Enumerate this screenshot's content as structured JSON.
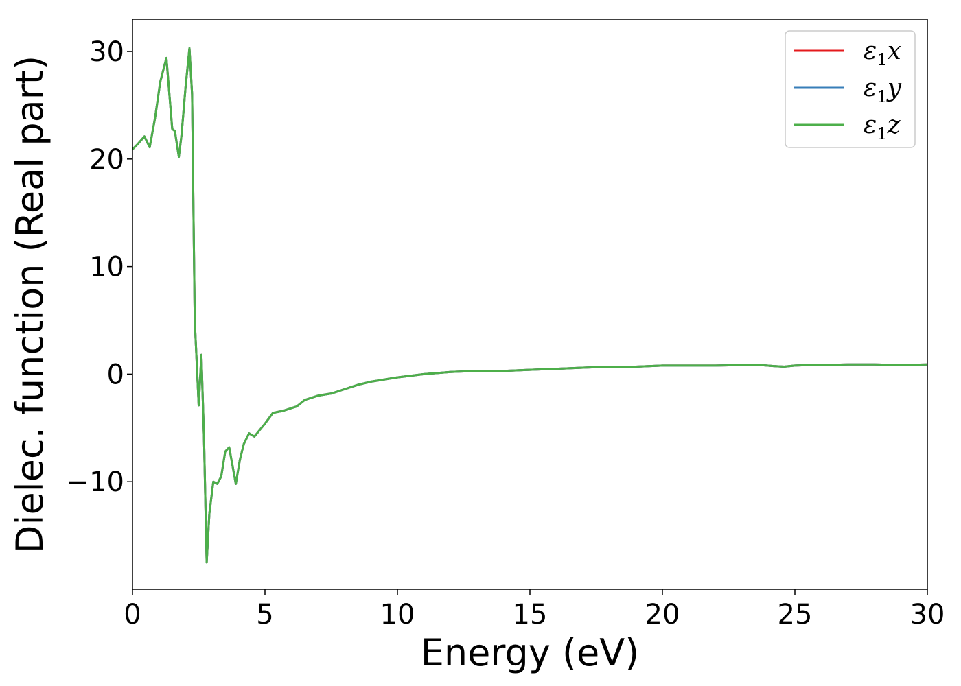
{
  "chart_data": {
    "type": "line",
    "title": "",
    "xlabel": "Energy (eV)",
    "ylabel": "Dielec. function (Real part)",
    "xlim": [
      0,
      30
    ],
    "ylim": [
      -20,
      33
    ],
    "xticks": [
      0,
      5,
      10,
      15,
      20,
      25,
      30
    ],
    "xtick_labels": [
      "0",
      "5",
      "10",
      "15",
      "20",
      "25",
      "30"
    ],
    "yticks": [
      -10,
      0,
      10,
      20,
      30
    ],
    "ytick_labels": [
      "−10",
      "0",
      "10",
      "20",
      "30"
    ],
    "grid": false,
    "legend_position": "top-right",
    "legend": [
      {
        "base": "ε",
        "sub": "1",
        "suffix": "x",
        "color": "#e41a1c"
      },
      {
        "base": "ε",
        "sub": "1",
        "suffix": "y",
        "color": "#377eb8"
      },
      {
        "base": "ε",
        "sub": "1",
        "suffix": "z",
        "color": "#4daf4a"
      }
    ],
    "x": [
      0,
      0.2,
      0.45,
      0.65,
      0.85,
      1.05,
      1.28,
      1.5,
      1.6,
      1.75,
      1.85,
      2.0,
      2.15,
      2.25,
      2.35,
      2.5,
      2.6,
      2.7,
      2.8,
      2.9,
      3.05,
      3.2,
      3.35,
      3.5,
      3.65,
      3.9,
      4.05,
      4.2,
      4.4,
      4.6,
      4.8,
      5.0,
      5.3,
      5.7,
      6.2,
      6.5,
      7.0,
      7.5,
      8.0,
      8.5,
      9.0,
      9.5,
      10.0,
      11.0,
      12.0,
      13.0,
      14.0,
      15.0,
      16.0,
      17.0,
      18.0,
      19.0,
      20.0,
      21.0,
      22.0,
      23.0,
      23.7,
      24.2,
      24.6,
      25.0,
      25.5,
      26.0,
      27.0,
      28.0,
      29.0,
      30.0
    ],
    "series": [
      {
        "name": "ε1x",
        "color": "#e41a1c",
        "values": [
          20.9,
          21.4,
          22.1,
          21.1,
          23.8,
          27.2,
          29.4,
          22.8,
          22.6,
          20.2,
          22.2,
          26.6,
          30.3,
          26.0,
          5.0,
          -2.9,
          1.8,
          -6.0,
          -17.5,
          -13.0,
          -10.0,
          -10.2,
          -9.5,
          -7.2,
          -6.8,
          -10.2,
          -8.0,
          -6.5,
          -5.5,
          -5.8,
          -5.2,
          -4.6,
          -3.6,
          -3.4,
          -3.0,
          -2.4,
          -2.0,
          -1.8,
          -1.4,
          -1.0,
          -0.7,
          -0.5,
          -0.3,
          0.0,
          0.2,
          0.3,
          0.3,
          0.4,
          0.5,
          0.6,
          0.7,
          0.7,
          0.8,
          0.8,
          0.8,
          0.85,
          0.85,
          0.75,
          0.7,
          0.8,
          0.85,
          0.85,
          0.9,
          0.9,
          0.85,
          0.9
        ]
      },
      {
        "name": "ε1y",
        "color": "#377eb8",
        "values": [
          20.9,
          21.4,
          22.1,
          21.1,
          23.8,
          27.2,
          29.4,
          22.8,
          22.6,
          20.2,
          22.2,
          26.6,
          30.3,
          26.0,
          5.0,
          -2.9,
          1.8,
          -6.0,
          -17.5,
          -13.0,
          -10.0,
          -10.2,
          -9.5,
          -7.2,
          -6.8,
          -10.2,
          -8.0,
          -6.5,
          -5.5,
          -5.8,
          -5.2,
          -4.6,
          -3.6,
          -3.4,
          -3.0,
          -2.4,
          -2.0,
          -1.8,
          -1.4,
          -1.0,
          -0.7,
          -0.5,
          -0.3,
          0.0,
          0.2,
          0.3,
          0.3,
          0.4,
          0.5,
          0.6,
          0.7,
          0.7,
          0.8,
          0.8,
          0.8,
          0.85,
          0.85,
          0.75,
          0.7,
          0.8,
          0.85,
          0.85,
          0.9,
          0.9,
          0.85,
          0.9
        ]
      },
      {
        "name": "ε1z",
        "color": "#4daf4a",
        "values": [
          20.9,
          21.4,
          22.1,
          21.1,
          23.8,
          27.2,
          29.4,
          22.8,
          22.6,
          20.2,
          22.2,
          26.6,
          30.3,
          26.0,
          5.0,
          -2.9,
          1.8,
          -6.0,
          -17.5,
          -13.0,
          -10.0,
          -10.2,
          -9.5,
          -7.2,
          -6.8,
          -10.2,
          -8.0,
          -6.5,
          -5.5,
          -5.8,
          -5.2,
          -4.6,
          -3.6,
          -3.4,
          -3.0,
          -2.4,
          -2.0,
          -1.8,
          -1.4,
          -1.0,
          -0.7,
          -0.5,
          -0.3,
          0.0,
          0.2,
          0.3,
          0.3,
          0.4,
          0.5,
          0.6,
          0.7,
          0.7,
          0.8,
          0.8,
          0.8,
          0.85,
          0.85,
          0.75,
          0.7,
          0.8,
          0.85,
          0.85,
          0.9,
          0.9,
          0.85,
          0.9
        ]
      }
    ]
  }
}
